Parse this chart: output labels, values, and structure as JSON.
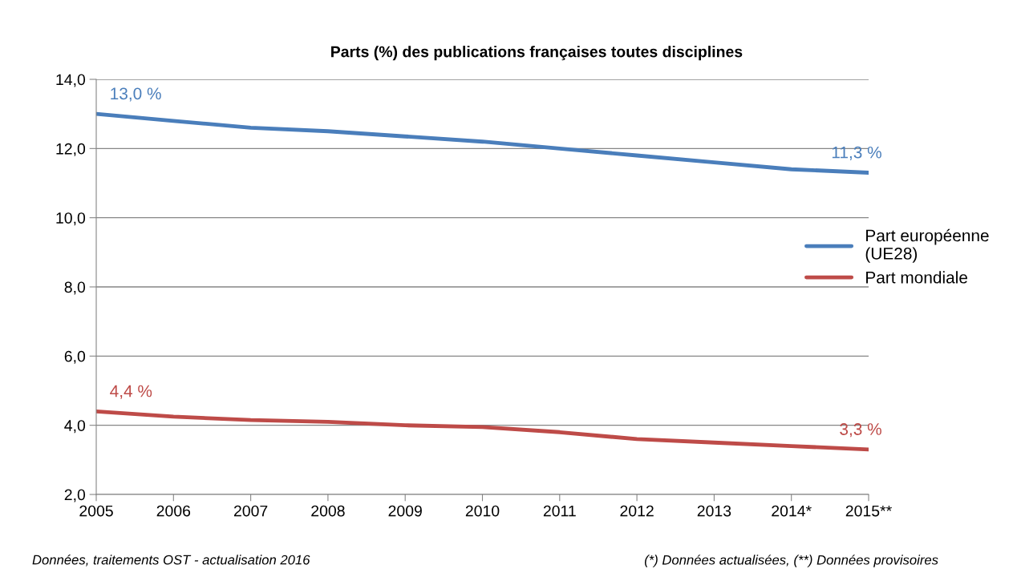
{
  "chart_data": {
    "type": "line",
    "title": "Parts (%) des publications françaises toutes disciplines",
    "categories": [
      "2005",
      "2006",
      "2007",
      "2008",
      "2009",
      "2010",
      "2011",
      "2012",
      "2013",
      "2014*",
      "2015**"
    ],
    "series": [
      {
        "name": "Part européenne\n(UE28)",
        "color": "#4a7ebb",
        "values": [
          13.0,
          12.8,
          12.6,
          12.5,
          12.35,
          12.2,
          12.0,
          11.8,
          11.6,
          11.4,
          11.3
        ],
        "value_labels": [
          "13,0 %",
          null,
          null,
          null,
          null,
          null,
          null,
          null,
          null,
          null,
          "11,3 %"
        ]
      },
      {
        "name": "Part mondiale",
        "color": "#be4b48",
        "values": [
          4.4,
          4.25,
          4.15,
          4.1,
          4.0,
          3.95,
          3.8,
          3.6,
          3.5,
          3.4,
          3.3
        ],
        "value_labels": [
          "4,4 %",
          null,
          null,
          null,
          null,
          null,
          null,
          null,
          null,
          null,
          "3,3 %"
        ]
      }
    ],
    "ylim": [
      2,
      14
    ],
    "yticks": [
      {
        "value": 2,
        "label": "2,0"
      },
      {
        "value": 4,
        "label": "4,0"
      },
      {
        "value": 6,
        "label": "6,0"
      },
      {
        "value": 8,
        "label": "8,0"
      },
      {
        "value": 10,
        "label": "10,0"
      },
      {
        "value": 12,
        "label": "12,0"
      },
      {
        "value": 14,
        "label": "14,0"
      }
    ],
    "grid": "y",
    "legend": "right",
    "marker": "none",
    "line_style": "solid",
    "annotations": [
      "Données, traitements OST - actualisation 2016",
      "(*) Données actualisées, (**) Données provisoires"
    ]
  }
}
